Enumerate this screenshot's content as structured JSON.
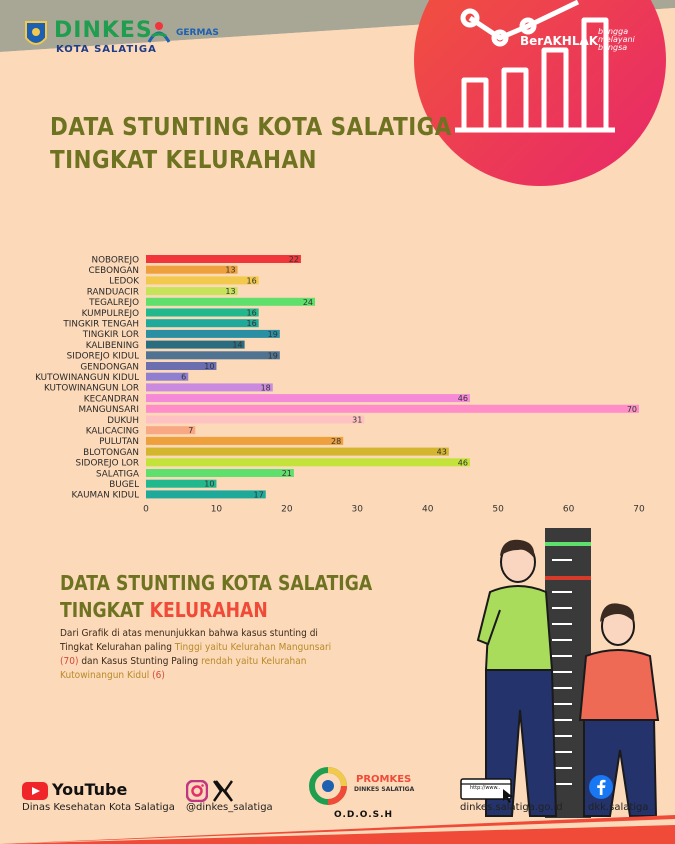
{
  "header": {
    "logo_name": "DINKES",
    "logo_subtitle": "KOTA SALATIGA",
    "germas_label": "GERMAS",
    "berakhlak_label": "BerAKHLAK",
    "berakhlak_tagline": [
      "bangga",
      "melayani",
      "bangsa"
    ]
  },
  "title_lines": [
    "DATA STUNTING KOTA SALATIGA",
    "TINGKAT KELURAHAN"
  ],
  "chart_data": {
    "type": "bar",
    "orientation": "horizontal",
    "categories": [
      "NOBOREJO",
      "CEBONGAN",
      "LEDOK",
      "RANDUACIR",
      "TEGALREJO",
      "KUMPULREJO",
      "TINGKIR TENGAH",
      "TINGKIR LOR",
      "KALIBENING",
      "SIDOREJO KIDUL",
      "GENDONGAN",
      "KUTOWINANGUN KIDUL",
      "KUTOWINANGUN LOR",
      "KECANDRAN",
      "MANGUNSARI",
      "DUKUH",
      "KALICACING",
      "PULUTAN",
      "BLOTONGAN",
      "SIDOREJO LOR",
      "SALATIGA",
      "BUGEL",
      "KAUMAN KIDUL"
    ],
    "values": [
      22,
      13,
      16,
      13,
      24,
      16,
      16,
      19,
      14,
      19,
      10,
      6,
      18,
      46,
      70,
      31,
      7,
      28,
      43,
      46,
      21,
      10,
      17
    ],
    "colors": [
      "#f0363a",
      "#eda03c",
      "#f2c94c",
      "#c7e35a",
      "#5fdf6b",
      "#21b88d",
      "#1fa99b",
      "#2b8fa3",
      "#2b6d80",
      "#4f7390",
      "#6b6fb0",
      "#8f7fd0",
      "#c98ae0",
      "#f58ad8",
      "#ff8ec8",
      "#ffc2c2",
      "#f8a882",
      "#eda03c",
      "#d4b52e",
      "#c3e33a",
      "#5fdf6b",
      "#21b88d",
      "#1fa99b"
    ],
    "xticks": [
      0,
      10,
      20,
      30,
      40,
      50,
      60,
      70
    ],
    "xlim": [
      0,
      70
    ],
    "grid": false,
    "title": "",
    "xlabel": "",
    "ylabel": ""
  },
  "summary": {
    "title_line1": "DATA STUNTING KOTA SALATIGA",
    "title_line2_prefix": "TINGKAT ",
    "title_line2_highlight": "KELURAHAN",
    "desc_part1": "Dari Grafik di atas menunjukkan bahwa kasus stunting di Tingkat Kelurahan paling ",
    "desc_hl1": "Tinggi yaitu Kelurahan Mangunsari ",
    "desc_hl1_num": "(70)",
    "desc_part2": " dan Kasus Stunting Paling ",
    "desc_hl2": "rendah yaitu Kelurahan Kutowinangun Kidul ",
    "desc_hl2_num": "(6)"
  },
  "footer": {
    "youtube_label": "YouTube",
    "youtube_channel": "Dinas Kesehatan Kota Salatiga",
    "social_handle": "@dinkes_salatiga",
    "promkes_label": "PROMKES",
    "promkes_sub": "DINKES SALATIGA",
    "odosh_label": "O.D.O.S.H",
    "browser_text": "http://www..",
    "website": "dinkes.salatiga.go.id",
    "facebook": "dkk.salatiga"
  },
  "colors": {
    "background": "#fcd9b8",
    "title": "#6e7321",
    "accent": "#f04a38",
    "grey_band": "#a8a796"
  }
}
